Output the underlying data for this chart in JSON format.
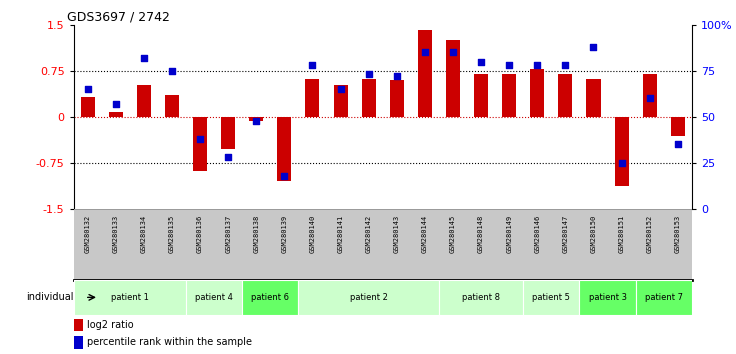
{
  "title": "GDS3697 / 2742",
  "samples": [
    "GSM280132",
    "GSM280133",
    "GSM280134",
    "GSM280135",
    "GSM280136",
    "GSM280137",
    "GSM280138",
    "GSM280139",
    "GSM280140",
    "GSM280141",
    "GSM280142",
    "GSM280143",
    "GSM280144",
    "GSM280145",
    "GSM280148",
    "GSM280149",
    "GSM280146",
    "GSM280147",
    "GSM280150",
    "GSM280151",
    "GSM280152",
    "GSM280153"
  ],
  "log2_ratio": [
    0.32,
    0.08,
    0.52,
    0.35,
    -0.88,
    -0.52,
    -0.07,
    -1.05,
    0.62,
    0.52,
    0.62,
    0.6,
    1.42,
    1.25,
    0.7,
    0.7,
    0.78,
    0.7,
    0.62,
    -1.12,
    0.7,
    -0.32
  ],
  "percentile": [
    65,
    57,
    82,
    75,
    38,
    28,
    48,
    18,
    78,
    65,
    73,
    72,
    85,
    85,
    80,
    78,
    78,
    78,
    88,
    25,
    60,
    35
  ],
  "patients": [
    {
      "label": "patient 1",
      "start": 0,
      "end": 4,
      "color": "#ccffcc"
    },
    {
      "label": "patient 4",
      "start": 4,
      "end": 6,
      "color": "#ccffcc"
    },
    {
      "label": "patient 6",
      "start": 6,
      "end": 8,
      "color": "#66ff66"
    },
    {
      "label": "patient 2",
      "start": 8,
      "end": 13,
      "color": "#ccffcc"
    },
    {
      "label": "patient 8",
      "start": 13,
      "end": 16,
      "color": "#ccffcc"
    },
    {
      "label": "patient 5",
      "start": 16,
      "end": 18,
      "color": "#ccffcc"
    },
    {
      "label": "patient 3",
      "start": 18,
      "end": 20,
      "color": "#66ff66"
    },
    {
      "label": "patient 7",
      "start": 20,
      "end": 22,
      "color": "#66ff66"
    }
  ],
  "bar_color": "#cc0000",
  "dot_color": "#0000cc",
  "ylim_left": [
    -1.5,
    1.5
  ],
  "ylim_right": [
    0,
    100
  ],
  "yticks_left": [
    -1.5,
    -0.75,
    0,
    0.75,
    1.5
  ],
  "yticks_left_labels": [
    "-1.5",
    "-0.75",
    "0",
    "0.75",
    "1.5"
  ],
  "yticks_right": [
    0,
    25,
    50,
    75,
    100
  ],
  "yticks_right_labels": [
    "0",
    "25",
    "50",
    "75",
    "100%"
  ],
  "hlines_dotted": [
    0.75,
    -0.75
  ],
  "zero_line_color": "#cc0000",
  "bar_width": 0.5,
  "dot_size": 18,
  "legend_log2": "log2 ratio",
  "legend_pct": "percentile rank within the sample",
  "individual_label": "individual",
  "bg_color": "#ffffff",
  "plot_bg_color": "#ffffff",
  "sample_bg_color": "#c8c8c8"
}
